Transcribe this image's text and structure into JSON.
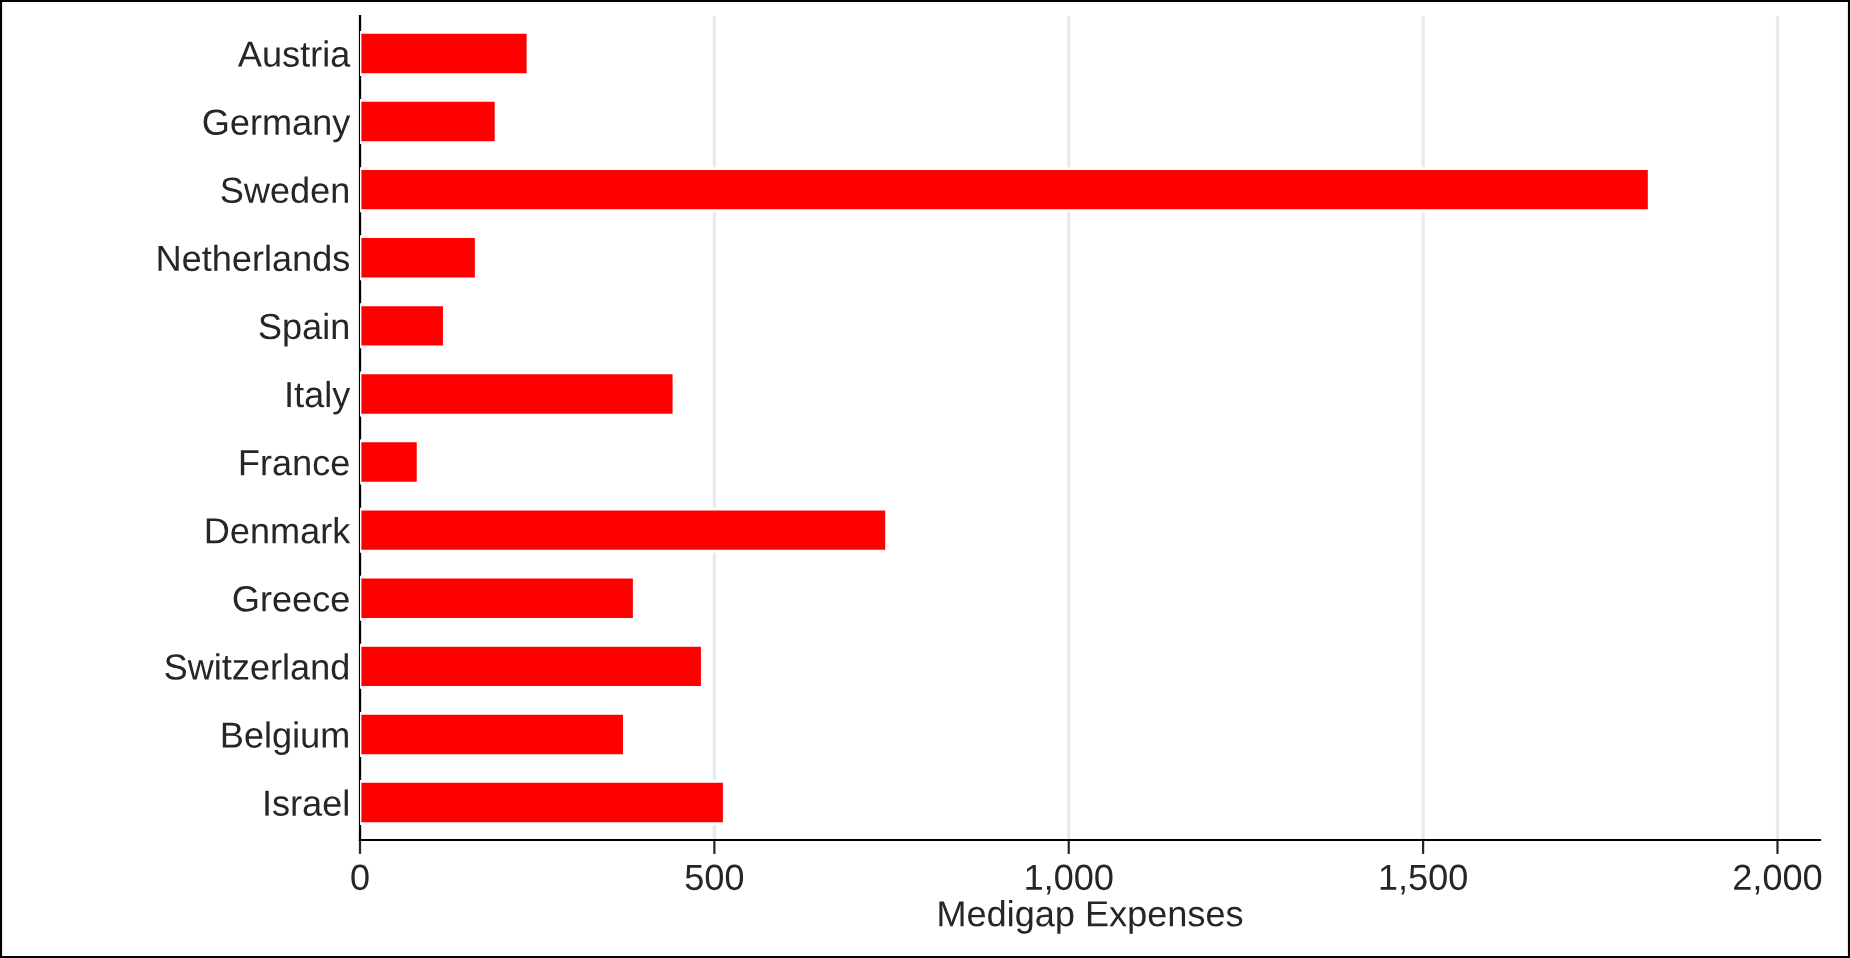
{
  "chart_data": {
    "type": "bar",
    "orientation": "horizontal",
    "xlabel": "Medigap Expenses",
    "categories": [
      "Austria",
      "Germany",
      "Sweden",
      "Netherlands",
      "Spain",
      "Italy",
      "France",
      "Denmark",
      "Greece",
      "Switzerland",
      "Belgium",
      "Israel"
    ],
    "values": [
      237,
      192,
      1819,
      164,
      119,
      443,
      82,
      743,
      387,
      483,
      373,
      514
    ],
    "color": "#ff0000",
    "xlim": [
      0,
      2060
    ],
    "xticks": [
      0,
      500,
      {
        "value": 1000,
        "label": "1,000"
      },
      {
        "value": 1500,
        "label": "1,500"
      },
      {
        "value": 2000,
        "label": "2,000"
      }
    ],
    "grid": "x"
  }
}
